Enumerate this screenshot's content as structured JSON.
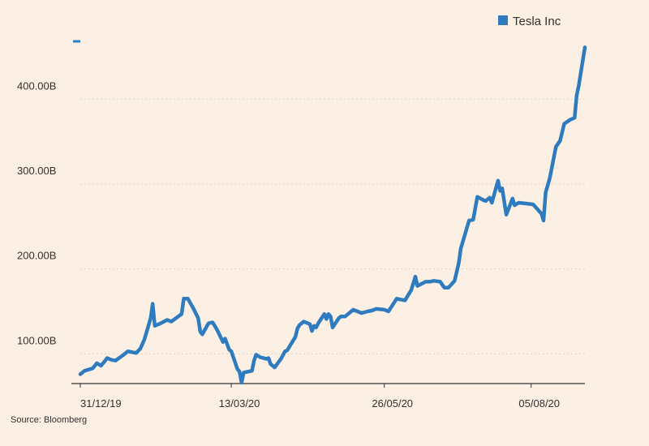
{
  "chart_data": {
    "type": "line",
    "series": [
      {
        "name": "Tesla Inc",
        "color": "#2e7bbf",
        "points": [
          [
            "2019-12-31",
            76
          ],
          [
            "2020-01-02",
            80
          ],
          [
            "2020-01-06",
            83
          ],
          [
            "2020-01-08",
            89
          ],
          [
            "2020-01-10",
            86
          ],
          [
            "2020-01-13",
            95
          ],
          [
            "2020-01-15",
            93
          ],
          [
            "2020-01-17",
            92
          ],
          [
            "2020-01-21",
            99
          ],
          [
            "2020-01-23",
            103
          ],
          [
            "2020-01-27",
            101
          ],
          [
            "2020-01-29",
            106
          ],
          [
            "2020-01-31",
            117
          ],
          [
            "2020-02-03",
            142
          ],
          [
            "2020-02-04",
            159
          ],
          [
            "2020-02-05",
            133
          ],
          [
            "2020-02-07",
            135
          ],
          [
            "2020-02-11",
            140
          ],
          [
            "2020-02-13",
            138
          ],
          [
            "2020-02-18",
            147
          ],
          [
            "2020-02-19",
            165
          ],
          [
            "2020-02-21",
            165
          ],
          [
            "2020-02-24",
            152
          ],
          [
            "2020-02-26",
            142
          ],
          [
            "2020-02-27",
            126
          ],
          [
            "2020-02-28",
            123
          ],
          [
            "2020-03-02",
            136
          ],
          [
            "2020-03-04",
            137
          ],
          [
            "2020-03-06",
            129
          ],
          [
            "2020-03-09",
            114
          ],
          [
            "2020-03-10",
            118
          ],
          [
            "2020-03-12",
            105
          ],
          [
            "2020-03-13",
            103
          ],
          [
            "2020-03-16",
            82
          ],
          [
            "2020-03-17",
            79
          ],
          [
            "2020-03-18",
            66
          ],
          [
            "2020-03-19",
            78
          ],
          [
            "2020-03-23",
            80
          ],
          [
            "2020-03-24",
            92
          ],
          [
            "2020-03-25",
            99
          ],
          [
            "2020-03-27",
            96
          ],
          [
            "2020-03-30",
            94
          ],
          [
            "2020-03-31",
            95
          ],
          [
            "2020-04-01",
            88
          ],
          [
            "2020-04-03",
            84
          ],
          [
            "2020-04-06",
            94
          ],
          [
            "2020-04-08",
            103
          ],
          [
            "2020-04-09",
            104
          ],
          [
            "2020-04-13",
            120
          ],
          [
            "2020-04-14",
            130
          ],
          [
            "2020-04-15",
            134
          ],
          [
            "2020-04-17",
            138
          ],
          [
            "2020-04-20",
            135
          ],
          [
            "2020-04-21",
            127
          ],
          [
            "2020-04-22",
            133
          ],
          [
            "2020-04-23",
            131
          ],
          [
            "2020-04-24",
            136
          ],
          [
            "2020-04-27",
            147
          ],
          [
            "2020-04-28",
            141
          ],
          [
            "2020-04-29",
            147
          ],
          [
            "2020-04-30",
            144
          ],
          [
            "2020-05-01",
            131
          ],
          [
            "2020-05-04",
            142
          ],
          [
            "2020-05-05",
            144
          ],
          [
            "2020-05-07",
            144
          ],
          [
            "2020-05-11",
            152
          ],
          [
            "2020-05-13",
            150
          ],
          [
            "2020-05-15",
            148
          ],
          [
            "2020-05-18",
            150
          ],
          [
            "2020-05-20",
            151
          ],
          [
            "2020-05-22",
            153
          ],
          [
            "2020-05-26",
            152
          ],
          [
            "2020-05-28",
            150
          ],
          [
            "2020-06-01",
            165
          ],
          [
            "2020-06-03",
            164
          ],
          [
            "2020-06-05",
            163
          ],
          [
            "2020-06-08",
            175
          ],
          [
            "2020-06-10",
            191
          ],
          [
            "2020-06-11",
            180
          ],
          [
            "2020-06-15",
            185
          ],
          [
            "2020-06-17",
            185
          ],
          [
            "2020-06-19",
            186
          ],
          [
            "2020-06-22",
            185
          ],
          [
            "2020-06-24",
            178
          ],
          [
            "2020-06-26",
            178
          ],
          [
            "2020-06-29",
            186
          ],
          [
            "2020-07-01",
            207
          ],
          [
            "2020-07-02",
            224
          ],
          [
            "2020-07-06",
            257
          ],
          [
            "2020-07-08",
            258
          ],
          [
            "2020-07-10",
            285
          ],
          [
            "2020-07-13",
            281
          ],
          [
            "2020-07-14",
            280
          ],
          [
            "2020-07-16",
            284
          ],
          [
            "2020-07-17",
            278
          ],
          [
            "2020-07-20",
            304
          ],
          [
            "2020-07-21",
            292
          ],
          [
            "2020-07-22",
            295
          ],
          [
            "2020-07-24",
            264
          ],
          [
            "2020-07-27",
            283
          ],
          [
            "2020-07-28",
            275
          ],
          [
            "2020-07-30",
            278
          ],
          [
            "2020-08-03",
            277
          ],
          [
            "2020-08-06",
            276
          ],
          [
            "2020-08-10",
            265
          ],
          [
            "2020-08-11",
            257
          ],
          [
            "2020-08-12",
            290
          ],
          [
            "2020-08-14",
            307
          ],
          [
            "2020-08-17",
            344
          ],
          [
            "2020-08-19",
            351
          ],
          [
            "2020-08-21",
            371
          ],
          [
            "2020-08-24",
            376
          ],
          [
            "2020-08-26",
            378
          ],
          [
            "2020-08-27",
            404
          ],
          [
            "2020-08-28",
            416
          ],
          [
            "2020-08-31",
            461
          ]
        ]
      }
    ],
    "xticks": [
      {
        "date": "2019-12-31",
        "label": "31/12/19"
      },
      {
        "date": "2020-03-13",
        "label": "13/03/20"
      },
      {
        "date": "2020-05-26",
        "label": "26/05/20"
      },
      {
        "date": "2020-08-05",
        "label": "05/08/20"
      }
    ],
    "yticks": [
      {
        "value": 100,
        "label": "100.00B"
      },
      {
        "value": 200,
        "label": "200.00B"
      },
      {
        "value": 300,
        "label": "300.00B"
      },
      {
        "value": 400,
        "label": "400.00B"
      }
    ],
    "xlim": [
      "2019-12-31",
      "2020-08-31"
    ],
    "ylim": [
      65,
      470
    ],
    "grid": true,
    "grid_style": "dotted horizontal",
    "legend": {
      "position": "top-right"
    },
    "source": "Source: Bloomberg",
    "colors": {
      "background": "#fcefe3",
      "line": "#2e7bbf",
      "text": "#33302e",
      "grid": "#e0d5ca",
      "axis": "#33302e"
    }
  }
}
